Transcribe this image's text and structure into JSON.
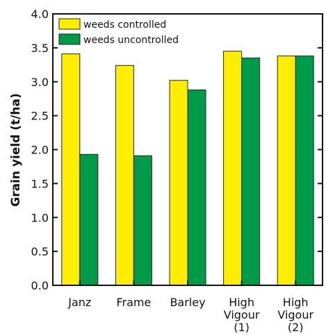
{
  "chart_data": {
    "type": "bar",
    "title": "",
    "xlabel": "",
    "ylabel": "Grain yield (t/ha)",
    "ylim": [
      0,
      4.0
    ],
    "yticks": [
      0.0,
      0.5,
      1.0,
      1.5,
      2.0,
      2.5,
      3.0,
      3.5,
      4.0
    ],
    "ytick_labels": [
      "0.0",
      "0.5",
      "1.0",
      "1.5",
      "2.0",
      "2.5",
      "3.0",
      "3.5",
      "4.0"
    ],
    "categories": [
      [
        "Janz"
      ],
      [
        "Frame"
      ],
      [
        "Barley"
      ],
      [
        "High",
        "Vigour",
        "(1)"
      ],
      [
        "High",
        "Vigour",
        "(2)"
      ]
    ],
    "series": [
      {
        "name": "weeds controlled",
        "color": "#ffee00",
        "values": [
          3.41,
          3.24,
          3.02,
          3.45,
          3.38
        ]
      },
      {
        "name": "weeds uncontrolled",
        "color": "#009b48",
        "values": [
          1.93,
          1.91,
          2.88,
          3.35,
          3.38
        ]
      }
    ],
    "grid": false,
    "legend_position": "top-left"
  }
}
